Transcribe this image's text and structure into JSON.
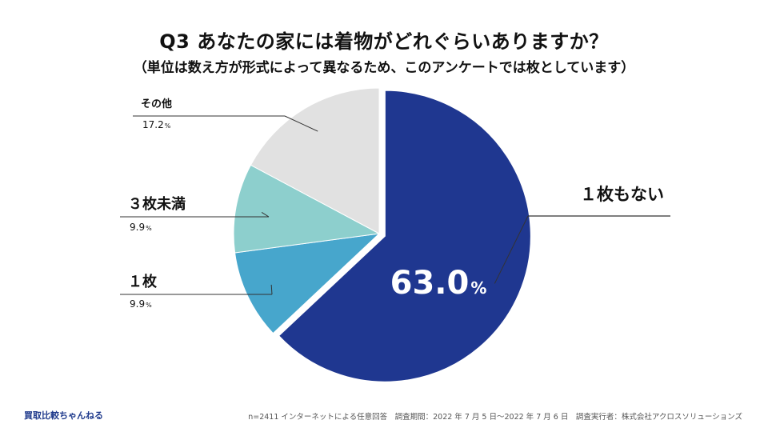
{
  "header": {
    "title": "Q3 あなたの家には着物がどれぐらいありますか？",
    "subtitle": "（単位は数え方が形式によって異なるため、このアンケートでは枚としています）"
  },
  "chart_data": {
    "type": "pie",
    "title": "Q3 あなたの家には着物がどれぐらいありますか？",
    "slices": [
      {
        "label": "１枚もない",
        "value": 63.0,
        "display": "63.0",
        "color": "#1f3790"
      },
      {
        "label": "１枚",
        "value": 9.9,
        "display": "9.9",
        "color": "#47a6cc"
      },
      {
        "label": "３枚未満",
        "value": 9.9,
        "display": "9.9",
        "color": "#8dcfcd"
      },
      {
        "label": "その他",
        "value": 17.2,
        "display": "17.2",
        "color": "#e1e1e1"
      }
    ],
    "unit": "%",
    "start": "12 o'clock",
    "direction": "clockwise"
  },
  "footer": {
    "brand": "買取比較ちゃんねる",
    "note": "n=2411 インターネットによる任意回答　調査期間：2022 年 7 月 5 日〜2022 年 7 月 6 日　調査実行者：株式会社アクロスソリューションズ"
  }
}
